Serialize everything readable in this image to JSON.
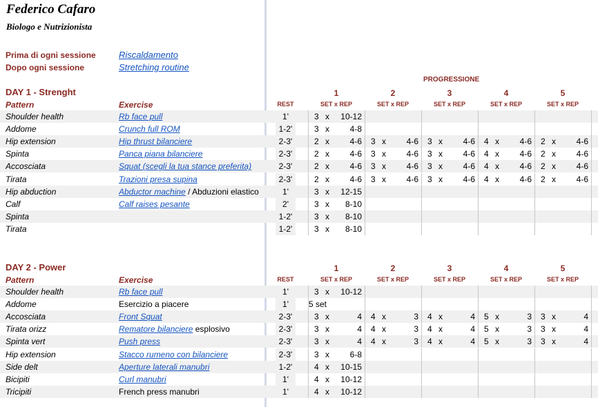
{
  "header": {
    "name": "Federico Cafaro",
    "subtitle": "Biologo e Nutrizionista"
  },
  "pre": [
    {
      "label": "Prima di ogni sessione",
      "link": "Riscaldamento"
    },
    {
      "label": "Dopo ogni sessione",
      "link": "Stretching routine"
    }
  ],
  "progressione": "PROGRESSIONE",
  "col_numbers": [
    "1",
    "2",
    "3",
    "4",
    "5"
  ],
  "set_rep_label": "SET x REP",
  "x_sep": "x",
  "days": [
    {
      "title": "DAY 1 - Strenght",
      "pattern_header": "Pattern",
      "exercise_header": "Exercise",
      "rest_header": "REST",
      "rows": [
        {
          "pattern": "Shoulder health",
          "exercise": "Rb face pull",
          "link": true,
          "rest": "1'",
          "prog": [
            [
              "3",
              "10-12"
            ]
          ]
        },
        {
          "pattern": "Addome",
          "exercise": "Crunch full ROM",
          "link": true,
          "rest": "1-2'",
          "prog": [
            [
              "3",
              "4-8"
            ]
          ]
        },
        {
          "pattern": "Hip extension",
          "exercise": "Hip thrust bilanciere",
          "link": true,
          "rest": "2-3'",
          "prog": [
            [
              "2",
              "4-6"
            ],
            [
              "3",
              "4-6"
            ],
            [
              "3",
              "4-6"
            ],
            [
              "4",
              "4-6"
            ],
            [
              "2",
              "4-6"
            ]
          ]
        },
        {
          "pattern": "Spinta",
          "exercise": "Panca piana bilanciere",
          "link": true,
          "rest": "2-3'",
          "prog": [
            [
              "2",
              "4-6"
            ],
            [
              "3",
              "4-6"
            ],
            [
              "3",
              "4-6"
            ],
            [
              "4",
              "4-6"
            ],
            [
              "2",
              "4-6"
            ]
          ]
        },
        {
          "pattern": "Accosciata",
          "exercise": "Squat (scegli la tua stance preferita)",
          "link": true,
          "rest": "2-3'",
          "prog": [
            [
              "2",
              "4-6"
            ],
            [
              "3",
              "4-6"
            ],
            [
              "3",
              "4-6"
            ],
            [
              "4",
              "4-6"
            ],
            [
              "2",
              "4-6"
            ]
          ]
        },
        {
          "pattern": "Tirata",
          "exercise": "Trazioni presa supina",
          "link": true,
          "rest": "2-3'",
          "prog": [
            [
              "2",
              "4-6"
            ],
            [
              "3",
              "4-6"
            ],
            [
              "3",
              "4-6"
            ],
            [
              "4",
              "4-6"
            ],
            [
              "2",
              "4-6"
            ]
          ]
        },
        {
          "pattern": "Hip abduction",
          "exercise": "Abductor machine",
          "link": true,
          "extra": " / Abduzioni elastico",
          "rest": "1'",
          "prog": [
            [
              "3",
              "12-15"
            ]
          ]
        },
        {
          "pattern": "Calf",
          "exercise": "Calf raises pesante",
          "link": true,
          "rest": "2'",
          "prog": [
            [
              "3",
              "8-10"
            ]
          ]
        },
        {
          "pattern": "Spinta",
          "exercise": "",
          "link": false,
          "rest": "1-2'",
          "prog": [
            [
              "3",
              "8-10"
            ]
          ]
        },
        {
          "pattern": "Tirata",
          "exercise": "",
          "link": false,
          "rest": "1-2'",
          "prog": [
            [
              "3",
              "8-10"
            ]
          ]
        }
      ]
    },
    {
      "title": "DAY 2 - Power",
      "pattern_header": "Pattern",
      "exercise_header": "Exercise",
      "rest_header": "REST",
      "rows": [
        {
          "pattern": "Shoulder health",
          "exercise": "Rb face pull",
          "link": true,
          "rest": "1'",
          "prog": [
            [
              "3",
              "10-12"
            ]
          ]
        },
        {
          "pattern": "Addome",
          "exercise": "Esercizio a piacere",
          "link": false,
          "rest": "1'",
          "special": "5 set",
          "prog": []
        },
        {
          "pattern": "Accosciata",
          "exercise": "Front Squat",
          "link": true,
          "rest": "2-3'",
          "prog": [
            [
              "3",
              "4"
            ],
            [
              "4",
              "3"
            ],
            [
              "4",
              "4"
            ],
            [
              "5",
              "3"
            ],
            [
              "3",
              "4"
            ]
          ]
        },
        {
          "pattern": "Tirata orizz",
          "exercise": "Rematore bilanciere",
          "link": true,
          "extra": " esplosivo",
          "rest": "2-3'",
          "prog": [
            [
              "3",
              "4"
            ],
            [
              "4",
              "3"
            ],
            [
              "4",
              "4"
            ],
            [
              "5",
              "3"
            ],
            [
              "3",
              "4"
            ]
          ]
        },
        {
          "pattern": "Spinta vert",
          "exercise": "Push press",
          "link": true,
          "rest": "2-3'",
          "prog": [
            [
              "3",
              "4"
            ],
            [
              "4",
              "3"
            ],
            [
              "4",
              "4"
            ],
            [
              "5",
              "3"
            ],
            [
              "3",
              "4"
            ]
          ]
        },
        {
          "pattern": "Hip extension",
          "exercise": "Stacco rumeno con bilanciere",
          "link": true,
          "rest": "2-3'",
          "prog": [
            [
              "3",
              "6-8"
            ]
          ]
        },
        {
          "pattern": "Side delt",
          "exercise": "Aperture laterali manubri",
          "link": true,
          "rest": "1-2'",
          "prog": [
            [
              "4",
              "10-15"
            ]
          ]
        },
        {
          "pattern": "Bicipiti",
          "exercise": "Curl manubri",
          "link": true,
          "rest": "1'",
          "prog": [
            [
              "4",
              "10-12"
            ]
          ]
        },
        {
          "pattern": "Tricipiti",
          "exercise": "French press manubri",
          "link": false,
          "rest": "1'",
          "prog": [
            [
              "4",
              "10-12"
            ]
          ]
        }
      ]
    }
  ]
}
